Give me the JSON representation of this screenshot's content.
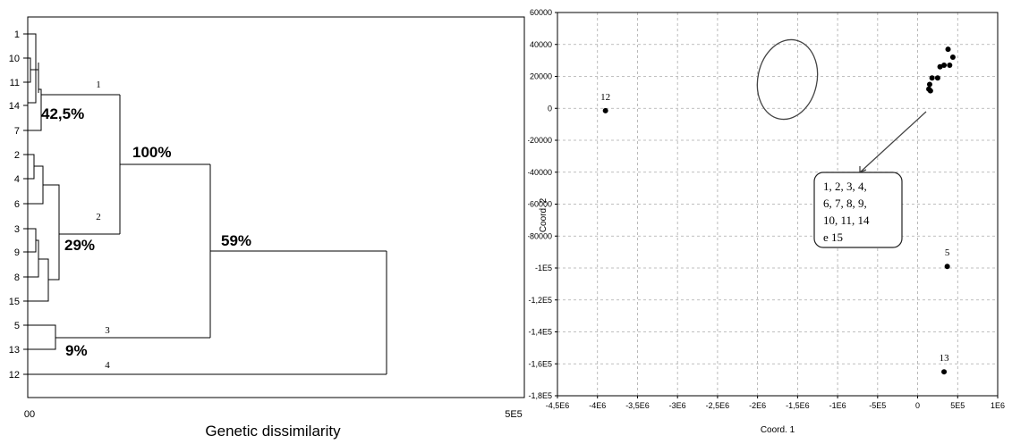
{
  "chart_data": [
    {
      "type": "dendrogram",
      "xlabel": "Genetic dissimilarity",
      "xticks": [
        "00",
        "5E5"
      ],
      "leaf_order": [
        "1",
        "10",
        "11",
        "14",
        "7",
        "2",
        "4",
        "6",
        "3",
        "9",
        "8",
        "15",
        "5",
        "13",
        "12"
      ],
      "clusters": [
        {
          "id": "1",
          "members": [
            "1",
            "10",
            "11",
            "14",
            "7"
          ],
          "percent": "42,5%"
        },
        {
          "id": "2",
          "members": [
            "2",
            "4",
            "6",
            "3",
            "9",
            "8",
            "15"
          ],
          "percent": "29%"
        },
        {
          "id": "3",
          "members": [
            "5",
            "13"
          ],
          "percent": "9%"
        },
        {
          "id": "4",
          "members": [
            "12"
          ]
        }
      ],
      "annotations": [
        "100%",
        "59%"
      ]
    },
    {
      "type": "scatter",
      "xlabel": "Coord. 1",
      "ylabel": "Coord. 2",
      "xlim": [
        -4500000,
        1000000
      ],
      "ylim": [
        -180000,
        60000
      ],
      "xticks": [
        "-4,5E6",
        "-4E6",
        "-3,5E6",
        "-3E6",
        "-2,5E6",
        "-2E6",
        "-1,5E6",
        "-1E6",
        "-5E5",
        "0",
        "5E5",
        "1E6"
      ],
      "yticks": [
        "60000",
        "40000",
        "20000",
        "0",
        "-20000",
        "-40000",
        "-60000",
        "-80000",
        "-1E5",
        "-1,2E5",
        "-1,4E5",
        "-1,6E5",
        "-1,8E5"
      ],
      "grid": true,
      "points": [
        {
          "x": -3900000,
          "y": -1500,
          "label": "12"
        },
        {
          "x": 370000,
          "y": -99000,
          "label": "5"
        },
        {
          "x": 330000,
          "y": -165000,
          "label": "13"
        },
        {
          "x": 380000,
          "y": 37000
        },
        {
          "x": 440000,
          "y": 32000
        },
        {
          "x": 400000,
          "y": 27000
        },
        {
          "x": 330000,
          "y": 27000
        },
        {
          "x": 280000,
          "y": 26000
        },
        {
          "x": 250000,
          "y": 19000
        },
        {
          "x": 180000,
          "y": 19000
        },
        {
          "x": 150000,
          "y": 15000
        },
        {
          "x": 140000,
          "y": 12000
        },
        {
          "x": 160000,
          "y": 11000
        }
      ],
      "group_label": [
        "1, 2, 3, 4,",
        "6, 7, 8, 9,",
        "10, 11, 14",
        "e 15"
      ],
      "stray_tick": "5"
    }
  ]
}
